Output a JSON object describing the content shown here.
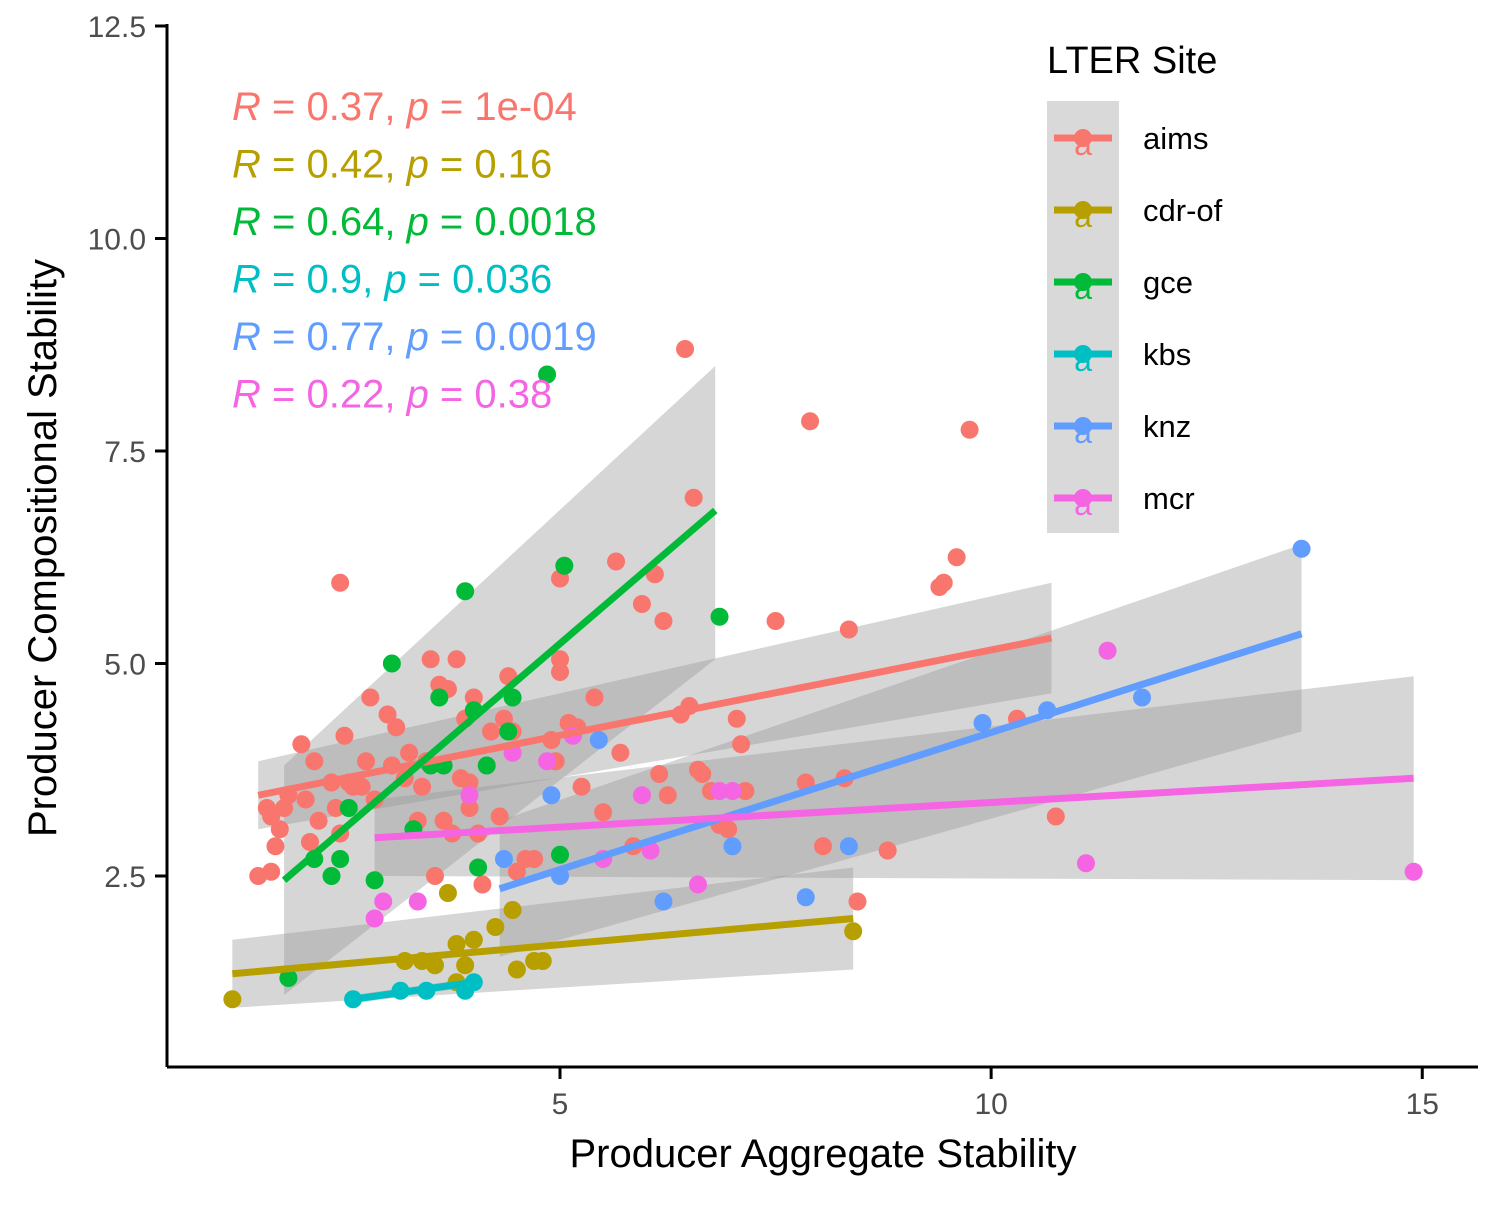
{
  "chart_data": {
    "type": "scatter",
    "xlabel": "Producer Aggregate Stability",
    "ylabel": "Producer Compositional Stability",
    "xlim": [
      0.5,
      15.6
    ],
    "ylim": [
      0.3,
      12.5
    ],
    "x_ticks": [
      5,
      10,
      15
    ],
    "x_tick_labels": [
      "5",
      "10",
      "15"
    ],
    "y_ticks": [
      2.5,
      5.0,
      7.5,
      10.0,
      12.5
    ],
    "y_tick_labels": [
      "2.5",
      "5.0",
      "7.5",
      "10.0",
      "12.5"
    ],
    "grid": false,
    "legend": {
      "title": "LTER Site",
      "position": "top-right",
      "key_glyph_text": "a"
    },
    "series": [
      {
        "name": "aims",
        "color": "#F8766D",
        "stat": {
          "r_label": "R",
          "r_value": "0.37",
          "p_label": "p",
          "p_value": "1e-04"
        },
        "fit": {
          "x": [
            1.5,
            10.7
          ],
          "y": [
            3.45,
            5.3
          ]
        },
        "ci": {
          "x": [
            1.5,
            10.7
          ],
          "upper": [
            3.85,
            5.95
          ],
          "lower": [
            3.05,
            4.65
          ]
        },
        "points": [
          [
            1.5,
            2.5
          ],
          [
            1.65,
            2.55
          ],
          [
            1.7,
            2.85
          ],
          [
            1.75,
            3.05
          ],
          [
            1.6,
            3.3
          ],
          [
            1.65,
            3.2
          ],
          [
            1.8,
            3.3
          ],
          [
            1.85,
            3.45
          ],
          [
            2.0,
            4.05
          ],
          [
            2.05,
            3.4
          ],
          [
            2.1,
            2.9
          ],
          [
            2.15,
            3.85
          ],
          [
            2.2,
            3.15
          ],
          [
            2.35,
            3.6
          ],
          [
            2.4,
            3.3
          ],
          [
            2.45,
            3.0
          ],
          [
            2.5,
            4.15
          ],
          [
            2.45,
            5.95
          ],
          [
            2.55,
            3.6
          ],
          [
            2.6,
            3.55
          ],
          [
            2.7,
            3.55
          ],
          [
            2.75,
            3.85
          ],
          [
            2.8,
            4.6
          ],
          [
            2.85,
            3.4
          ],
          [
            3.0,
            4.4
          ],
          [
            3.05,
            3.8
          ],
          [
            3.1,
            4.25
          ],
          [
            3.2,
            3.65
          ],
          [
            3.25,
            3.95
          ],
          [
            3.35,
            3.15
          ],
          [
            3.4,
            3.55
          ],
          [
            3.45,
            3.85
          ],
          [
            3.5,
            5.05
          ],
          [
            3.55,
            2.5
          ],
          [
            3.6,
            4.75
          ],
          [
            3.65,
            3.15
          ],
          [
            3.7,
            4.7
          ],
          [
            3.75,
            3.0
          ],
          [
            3.8,
            5.05
          ],
          [
            3.85,
            3.65
          ],
          [
            3.9,
            4.35
          ],
          [
            3.95,
            3.6
          ],
          [
            4.0,
            4.6
          ],
          [
            3.95,
            3.3
          ],
          [
            4.05,
            3.0
          ],
          [
            4.1,
            2.4
          ],
          [
            4.2,
            4.2
          ],
          [
            4.3,
            3.2
          ],
          [
            4.35,
            4.35
          ],
          [
            4.4,
            4.85
          ],
          [
            4.45,
            4.2
          ],
          [
            4.5,
            2.55
          ],
          [
            4.6,
            2.7
          ],
          [
            4.7,
            2.7
          ],
          [
            4.9,
            4.1
          ],
          [
            4.95,
            3.85
          ],
          [
            5.0,
            4.9
          ],
          [
            5.0,
            5.05
          ],
          [
            5.0,
            6.0
          ],
          [
            5.1,
            4.3
          ],
          [
            5.2,
            4.25
          ],
          [
            5.25,
            3.55
          ],
          [
            5.4,
            4.6
          ],
          [
            5.5,
            3.25
          ],
          [
            5.65,
            6.2
          ],
          [
            5.7,
            3.95
          ],
          [
            5.85,
            2.85
          ],
          [
            5.95,
            5.7
          ],
          [
            6.1,
            6.05
          ],
          [
            6.15,
            3.7
          ],
          [
            6.2,
            5.5
          ],
          [
            6.25,
            3.45
          ],
          [
            6.4,
            4.4
          ],
          [
            6.45,
            8.7
          ],
          [
            6.5,
            4.5
          ],
          [
            6.55,
            6.95
          ],
          [
            6.6,
            3.75
          ],
          [
            6.65,
            3.7
          ],
          [
            6.75,
            3.5
          ],
          [
            6.85,
            3.1
          ],
          [
            6.95,
            3.05
          ],
          [
            7.05,
            4.35
          ],
          [
            7.1,
            4.05
          ],
          [
            7.15,
            3.5
          ],
          [
            7.5,
            5.5
          ],
          [
            7.85,
            3.6
          ],
          [
            7.9,
            7.85
          ],
          [
            8.05,
            2.85
          ],
          [
            8.3,
            3.65
          ],
          [
            8.35,
            5.4
          ],
          [
            8.45,
            2.2
          ],
          [
            8.8,
            2.8
          ],
          [
            9.4,
            5.9
          ],
          [
            9.45,
            5.95
          ],
          [
            9.6,
            6.25
          ],
          [
            9.75,
            7.75
          ],
          [
            10.3,
            4.35
          ],
          [
            10.75,
            3.2
          ]
        ]
      },
      {
        "name": "cdr-of",
        "color": "#B79F00",
        "stat": {
          "r_label": "R",
          "r_value": "0.42",
          "p_label": "p",
          "p_value": "0.16"
        },
        "fit": {
          "x": [
            1.2,
            8.4
          ],
          "y": [
            1.35,
            2.0
          ]
        },
        "ci": {
          "x": [
            1.2,
            8.4
          ],
          "upper": [
            1.75,
            2.6
          ],
          "lower": [
            0.95,
            1.4
          ]
        },
        "points": [
          [
            1.2,
            1.05
          ],
          [
            3.8,
            1.25
          ],
          [
            3.8,
            1.7
          ],
          [
            4.0,
            1.75
          ],
          [
            4.25,
            1.9
          ],
          [
            4.45,
            2.1
          ],
          [
            4.5,
            1.4
          ],
          [
            4.7,
            1.5
          ],
          [
            4.8,
            1.5
          ],
          [
            3.7,
            2.3
          ],
          [
            3.9,
            1.45
          ],
          [
            3.55,
            1.45
          ],
          [
            3.4,
            1.5
          ],
          [
            3.2,
            1.5
          ],
          [
            8.4,
            1.85
          ]
        ]
      },
      {
        "name": "gce",
        "color": "#00BA38",
        "stat": {
          "r_label": "R",
          "r_value": "0.64",
          "p_label": "p",
          "p_value": "0.0018"
        },
        "fit": {
          "x": [
            1.8,
            6.8
          ],
          "y": [
            2.45,
            6.8
          ]
        },
        "ci": {
          "x": [
            1.8,
            6.8
          ],
          "upper": [
            3.8,
            8.5
          ],
          "lower": [
            1.1,
            5.05
          ]
        },
        "points": [
          [
            1.85,
            1.3
          ],
          [
            2.15,
            2.7
          ],
          [
            2.35,
            2.5
          ],
          [
            2.45,
            2.7
          ],
          [
            2.55,
            3.3
          ],
          [
            2.85,
            2.45
          ],
          [
            3.05,
            5.0
          ],
          [
            3.3,
            3.05
          ],
          [
            3.5,
            3.8
          ],
          [
            3.6,
            4.6
          ],
          [
            3.65,
            3.8
          ],
          [
            3.9,
            5.85
          ],
          [
            4.0,
            4.45
          ],
          [
            4.05,
            2.6
          ],
          [
            4.15,
            3.8
          ],
          [
            4.4,
            4.2
          ],
          [
            4.45,
            4.6
          ],
          [
            4.85,
            8.4
          ],
          [
            5.05,
            6.15
          ],
          [
            5.0,
            2.75
          ],
          [
            6.85,
            5.55
          ]
        ]
      },
      {
        "name": "kbs",
        "color": "#00BFC4",
        "stat": {
          "r_label": "R",
          "r_value": "0.9",
          "p_label": "p",
          "p_value": "0.036"
        },
        "fit": {
          "x": [
            2.6,
            4.0
          ],
          "y": [
            1.05,
            1.25
          ]
        },
        "ci": {
          "x": [
            2.6,
            4.0
          ],
          "upper": [
            1.1,
            1.3
          ],
          "lower": [
            1.0,
            1.2
          ]
        },
        "points": [
          [
            2.6,
            1.05
          ],
          [
            3.15,
            1.15
          ],
          [
            3.45,
            1.15
          ],
          [
            3.9,
            1.15
          ],
          [
            4.0,
            1.25
          ]
        ]
      },
      {
        "name": "knz",
        "color": "#619CFF",
        "stat": {
          "r_label": "R",
          "r_value": "0.77",
          "p_label": "p",
          "p_value": "0.0019"
        },
        "fit": {
          "x": [
            4.3,
            13.6
          ],
          "y": [
            2.35,
            5.35
          ]
        },
        "ci": {
          "x": [
            4.3,
            13.6
          ],
          "upper": [
            3.15,
            6.4
          ],
          "lower": [
            1.55,
            4.2
          ]
        },
        "points": [
          [
            4.35,
            2.7
          ],
          [
            4.9,
            3.45
          ],
          [
            5.0,
            2.5
          ],
          [
            5.45,
            4.1
          ],
          [
            6.2,
            2.2
          ],
          [
            7.0,
            2.85
          ],
          [
            7.85,
            2.25
          ],
          [
            8.35,
            2.85
          ],
          [
            9.9,
            4.3
          ],
          [
            10.65,
            4.45
          ],
          [
            11.75,
            4.6
          ],
          [
            13.6,
            6.35
          ]
        ]
      },
      {
        "name": "mcr",
        "color": "#F564E3",
        "stat": {
          "r_label": "R",
          "r_value": "0.22",
          "p_label": "p",
          "p_value": "0.38"
        },
        "fit": {
          "x": [
            2.85,
            14.9
          ],
          "y": [
            2.95,
            3.65
          ]
        },
        "ci": {
          "x": [
            2.85,
            14.9
          ],
          "upper": [
            3.4,
            4.85
          ],
          "lower": [
            2.5,
            2.45
          ]
        },
        "points": [
          [
            2.85,
            2.0
          ],
          [
            2.95,
            2.2
          ],
          [
            3.35,
            2.2
          ],
          [
            3.95,
            3.45
          ],
          [
            4.45,
            3.95
          ],
          [
            4.85,
            3.85
          ],
          [
            5.15,
            4.15
          ],
          [
            5.5,
            2.7
          ],
          [
            5.95,
            3.45
          ],
          [
            6.05,
            2.8
          ],
          [
            6.6,
            2.4
          ],
          [
            6.85,
            3.5
          ],
          [
            7.0,
            3.5
          ],
          [
            11.1,
            2.65
          ],
          [
            11.35,
            5.15
          ],
          [
            14.9,
            2.55
          ]
        ]
      }
    ]
  }
}
